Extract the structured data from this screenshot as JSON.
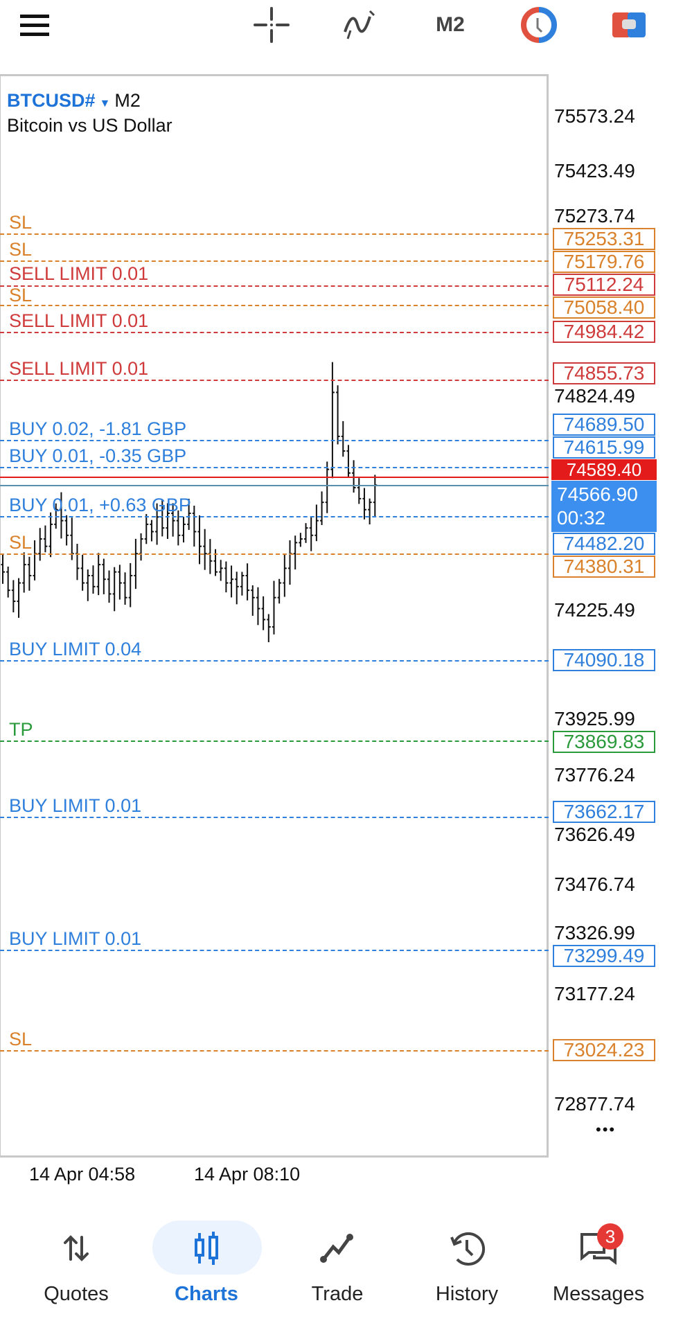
{
  "topbar": {
    "icons": [
      "menu-icon",
      "crosshair-icon",
      "indicators-icon",
      "timeframe",
      "one-click-trading-icon",
      "trade-panel-icon"
    ],
    "timeframe": "M2"
  },
  "chart": {
    "symbol": "BTCUSD#",
    "timeframe": "M2",
    "description": "Bitcoin vs US Dollar",
    "more_label": "•••"
  },
  "chart_data": {
    "type": "candlestick",
    "price_axis_ticks": [
      "75573.24",
      "75423.49",
      "75273.74",
      "74824.49",
      "74225.49",
      "73925.99",
      "73776.24",
      "73626.49",
      "73476.74",
      "73326.99",
      "73177.24",
      "72877.74"
    ],
    "time_axis_ticks": [
      "14 Apr 04:58",
      "14 Apr 08:10"
    ],
    "closes": [
      74330,
      74280,
      74250,
      74300,
      74350,
      74320,
      74380,
      74420,
      74400,
      74460,
      74500,
      74470,
      74430,
      74380,
      74340,
      74300,
      74320,
      74290,
      74350,
      74310,
      74270,
      74330,
      74300,
      74260,
      74320,
      74380,
      74420,
      74460,
      74440,
      74480,
      74450,
      74490,
      74470,
      74430,
      74460,
      74490,
      74440,
      74400,
      74380,
      74360,
      74330,
      74340,
      74300,
      74310,
      74290,
      74320,
      74280,
      74260,
      74230,
      74200,
      74180,
      74260,
      74300,
      74340,
      74380,
      74410,
      74420,
      74450,
      74430,
      74470,
      74520,
      74610,
      74820,
      74700,
      74660,
      74600,
      74560,
      74530,
      74500,
      74520,
      74567
    ],
    "current_price": "74566.90",
    "bar_timer": "00:32",
    "bid_price": "74589.40",
    "levels": [
      {
        "label": "SL",
        "price": "75253.31",
        "kind": "sl"
      },
      {
        "label": "SL",
        "price": "75179.76",
        "kind": "sl"
      },
      {
        "label": "SELL LIMIT 0.01",
        "price": "75112.24",
        "kind": "sell"
      },
      {
        "label": "SL",
        "price": "75058.40",
        "kind": "sl"
      },
      {
        "label": "SELL LIMIT 0.01",
        "price": "74984.42",
        "kind": "sell"
      },
      {
        "label": "SELL LIMIT 0.01",
        "price": "74855.73",
        "kind": "sell"
      },
      {
        "label": "BUY 0.02,  -1.81 GBP",
        "price": "74689.50",
        "kind": "buy"
      },
      {
        "label": "BUY 0.01,  -0.35 GBP",
        "price": "74615.99",
        "kind": "buy"
      },
      {
        "label": "BUY 0.01,  +0.63 GBP",
        "price": "74482.20",
        "kind": "buy"
      },
      {
        "label": "SL",
        "price": "74380.31",
        "kind": "sl"
      },
      {
        "label": "BUY LIMIT 0.04",
        "price": "74090.18",
        "kind": "buy"
      },
      {
        "label": "TP",
        "price": "73869.83",
        "kind": "tp"
      },
      {
        "label": "BUY LIMIT 0.01",
        "price": "73662.17",
        "kind": "buy"
      },
      {
        "label": "BUY LIMIT 0.01",
        "price": "73299.49",
        "kind": "buy"
      },
      {
        "label": "SL",
        "price": "73024.23",
        "kind": "sl"
      }
    ],
    "colors": {
      "sl": "#d9822b",
      "sell": "#cf3a3a",
      "buy": "#2f7fdc",
      "tp": "#2a9a3a",
      "bid": "#e41b1b",
      "current": "#3d8fef"
    }
  },
  "nav": {
    "items": [
      {
        "label": "Quotes",
        "icon": "quotes-arrows-icon"
      },
      {
        "label": "Charts",
        "icon": "candles-icon",
        "active": true
      },
      {
        "label": "Trade",
        "icon": "trade-line-icon"
      },
      {
        "label": "History",
        "icon": "history-clock-icon"
      },
      {
        "label": "Messages",
        "icon": "messages-icon",
        "badge": "3"
      }
    ]
  }
}
